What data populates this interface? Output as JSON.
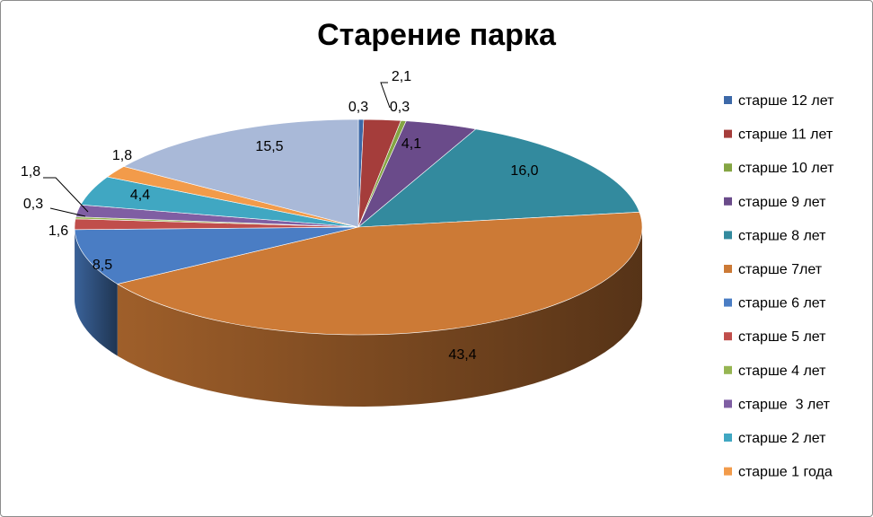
{
  "chart_data": {
    "type": "pie",
    "title": "Старение парка",
    "legend_position": "right",
    "slices": [
      {
        "label": "старше 12 лет",
        "value": 0.3,
        "display": "0,3",
        "color": "#3d69a8"
      },
      {
        "label": "старше 11 лет",
        "value": 2.1,
        "display": "2,1",
        "color": "#a53d3b"
      },
      {
        "label": "старше 10 лет",
        "value": 0.3,
        "display": "0,3",
        "color": "#84a543"
      },
      {
        "label": "старше 9 лет",
        "value": 4.1,
        "display": "4,1",
        "color": "#6a4b8a"
      },
      {
        "label": "старше 8 лет",
        "value": 16.0,
        "display": "16,0",
        "color": "#338a9e"
      },
      {
        "label": "старше 7лет",
        "value": 43.4,
        "display": "43,4",
        "color": "#cc7a36"
      },
      {
        "label": "старше 6 лет",
        "value": 8.5,
        "display": "8,5",
        "color": "#4a7dc4"
      },
      {
        "label": "старше 5 лет",
        "value": 1.6,
        "display": "1,6",
        "color": "#c04e4b"
      },
      {
        "label": "старше 4 лет",
        "value": 0.3,
        "display": "0,3",
        "color": "#96b552"
      },
      {
        "label": "старше  3 лет",
        "value": 1.8,
        "display": "1,8",
        "color": "#7f5ea3"
      },
      {
        "label": "старше 2 лет",
        "value": 4.4,
        "display": "4,4",
        "color": "#40a7c2"
      },
      {
        "label": "старше 1 года",
        "value": 1.8,
        "display": "1,8",
        "color": "#f29b4a"
      },
      {
        "label": "",
        "value": 15.5,
        "display": "15,5",
        "color": "#a9b9d8"
      }
    ]
  }
}
